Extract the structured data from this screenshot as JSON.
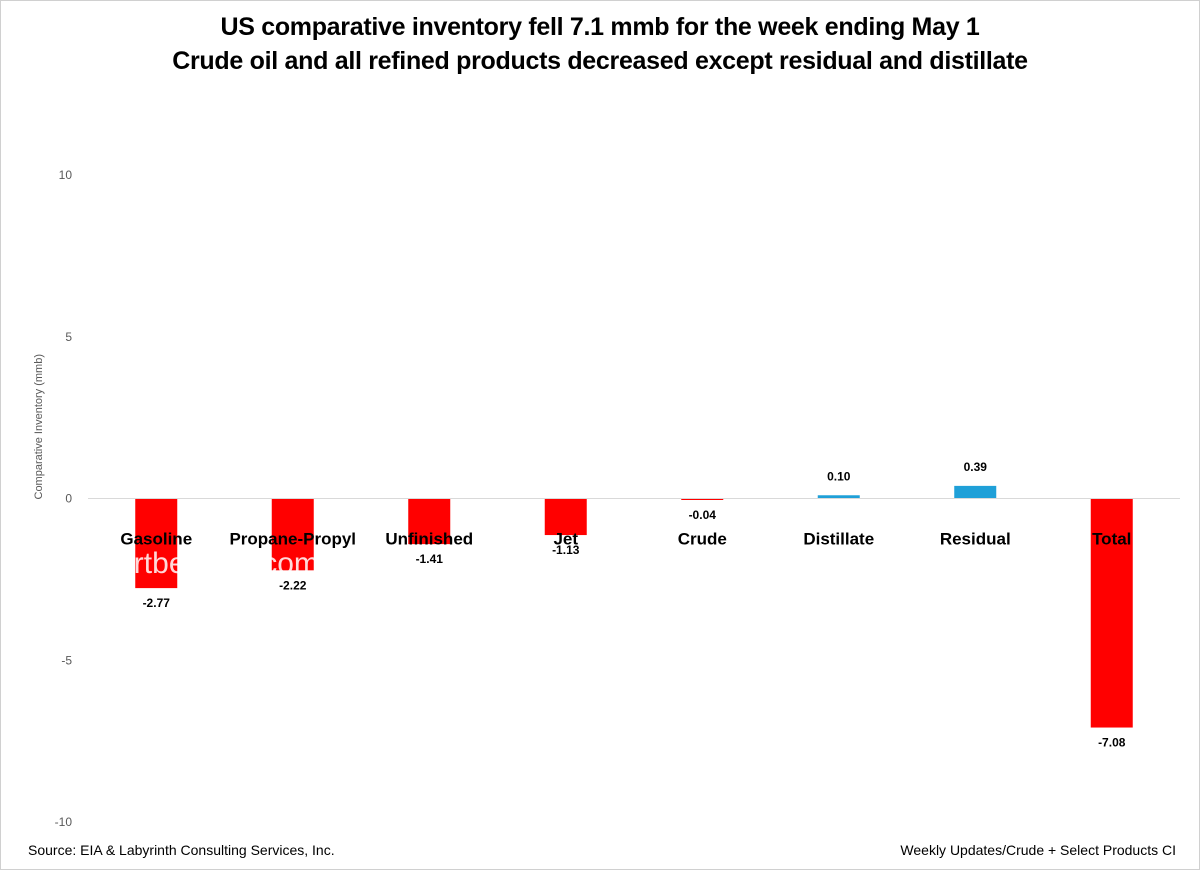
{
  "chart_data": {
    "type": "bar",
    "title_lines": [
      "US comparative inventory fell 7.1 mmb  for the week ending May 1",
      "Crude oil and all refined products decreased except residual and distillate"
    ],
    "xlabel": "",
    "ylabel": "Comparative Inventory (mmb)",
    "ylim": [
      -10,
      10
    ],
    "yticks": [
      10,
      5,
      0,
      -5,
      -10
    ],
    "grid": false,
    "legend": "none",
    "categories": [
      "Gasoline",
      "Propane-Propyl",
      "Unfinished",
      "Jet",
      "Crude",
      "Distillate",
      "Residual",
      "Total"
    ],
    "values": [
      -2.77,
      -2.22,
      -1.41,
      -1.13,
      -0.04,
      0.1,
      0.39,
      -7.08
    ],
    "data_labels": [
      "-2.77",
      "-2.22",
      "-1.41",
      "-1.13",
      "-0.04",
      "0.10",
      "0.39",
      "-7.08"
    ],
    "colors": {
      "negative": "#ff0000",
      "positive": "#1fa0d8"
    }
  },
  "watermark": "artberman.com",
  "footer": {
    "source": "Source:  EIA & Labyrinth Consulting Services, Inc.",
    "note": "Weekly Updates/Crude + Select Products CI"
  }
}
